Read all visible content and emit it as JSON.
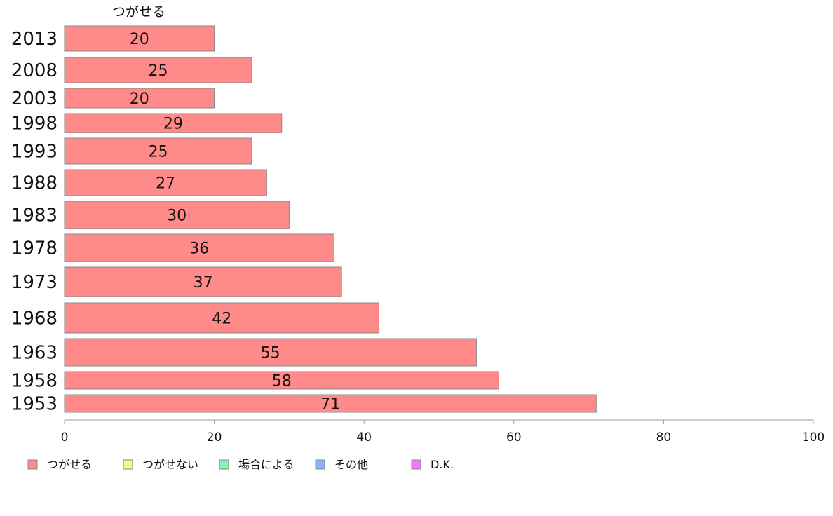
{
  "chart_data": {
    "type": "bar",
    "orientation": "horizontal",
    "column_title": "つがせる",
    "categories": [
      "2013",
      "2008",
      "2003",
      "1998",
      "1993",
      "1988",
      "1983",
      "1978",
      "1973",
      "1968",
      "1963",
      "1958",
      "1953"
    ],
    "series": [
      {
        "name": "つがせる",
        "values": [
          20,
          25,
          20,
          29,
          25,
          27,
          30,
          36,
          37,
          42,
          55,
          58,
          71
        ],
        "color": "#ff8a8a"
      }
    ],
    "data_labels": [
      "20",
      "25",
      "20",
      "29",
      "25",
      "27",
      "30",
      "36",
      "37",
      "42",
      "55",
      "58",
      "71"
    ],
    "xlim": [
      0,
      100
    ],
    "x_ticks": [
      0,
      20,
      40,
      60,
      80,
      100
    ],
    "x_tick_labels": [
      "0",
      "20",
      "40",
      "60",
      "80",
      "100"
    ],
    "legend": {
      "placement": "bottom-left",
      "entries": [
        {
          "label": "つがせる",
          "color": "#ff8a8a"
        },
        {
          "label": "つがせない",
          "color": "#eeff88"
        },
        {
          "label": "場合による",
          "color": "#88f5b5"
        },
        {
          "label": "その他",
          "color": "#88b5f5"
        },
        {
          "label": "D.K.",
          "color": "#f07af5"
        }
      ]
    },
    "grid": false
  }
}
